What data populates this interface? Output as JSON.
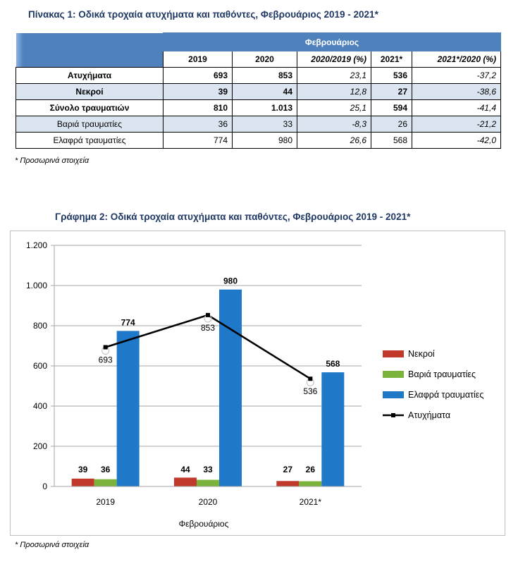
{
  "table": {
    "title": "Πίνακας 1: Οδικά τροχαία ατυχήματα και παθόντες, Φεβρουάριος 2019 - 2021*",
    "month_header": "Φεβρουάριος",
    "columns": [
      "2019",
      "2020",
      "2020/2019 (%)",
      "2021*",
      "2021*/2020 (%)"
    ],
    "rows": [
      {
        "label": "Ατυχήματα",
        "values": [
          "693",
          "853",
          "23,1",
          "536",
          "-37,2"
        ]
      },
      {
        "label": "Νεκροί",
        "values": [
          "39",
          "44",
          "12,8",
          "27",
          "-38,6"
        ]
      },
      {
        "label": "Σύνολο τραυματιών",
        "values": [
          "810",
          "1.013",
          "25,1",
          "594",
          "-41,4"
        ]
      },
      {
        "label": "Βαριά τραυματίες",
        "values": [
          "36",
          "33",
          "-8,3",
          "26",
          "-21,2"
        ]
      },
      {
        "label": "Ελαφρά τραυματίες",
        "values": [
          "774",
          "980",
          "26,6",
          "568",
          "-42,0"
        ]
      }
    ],
    "footnote": "* Προσωρινά στοιχεία"
  },
  "chart": {
    "title": "Γράφημα 2: Οδικά τροχαία ατυχήματα και παθόντες, Φεβρουάριος 2019 - 2021*",
    "footnote": "* Προσωρινά στοιχεία"
  },
  "chart_data": {
    "type": "bar",
    "title": "Γράφημα 2: Οδικά τροχαία ατυχήματα και παθόντες, Φεβρουάριος 2019 - 2021*",
    "xlabel": "Φεβρουάριος",
    "ylabel": "",
    "categories": [
      "2019",
      "2020",
      "2021*"
    ],
    "ylim": [
      0,
      1200
    ],
    "yticks": [
      0,
      200,
      400,
      600,
      800,
      1000,
      1200
    ],
    "ytick_labels": [
      "0",
      "200",
      "400",
      "600",
      "800",
      "1.000",
      "1.200"
    ],
    "grid": true,
    "legend_position": "right",
    "series": [
      {
        "name": "Νεκροί",
        "type": "bar",
        "color": "#c0392b",
        "values": [
          39,
          44,
          27
        ]
      },
      {
        "name": "Βαριά τραυματίες",
        "type": "bar",
        "color": "#7bb33a",
        "values": [
          36,
          33,
          26
        ]
      },
      {
        "name": "Ελαφρά τραυματίες",
        "type": "bar",
        "color": "#1f78c8",
        "values": [
          774,
          980,
          568
        ]
      },
      {
        "name": "Ατυχήματα",
        "type": "line",
        "color": "#000000",
        "values": [
          693,
          853,
          536
        ]
      }
    ]
  }
}
